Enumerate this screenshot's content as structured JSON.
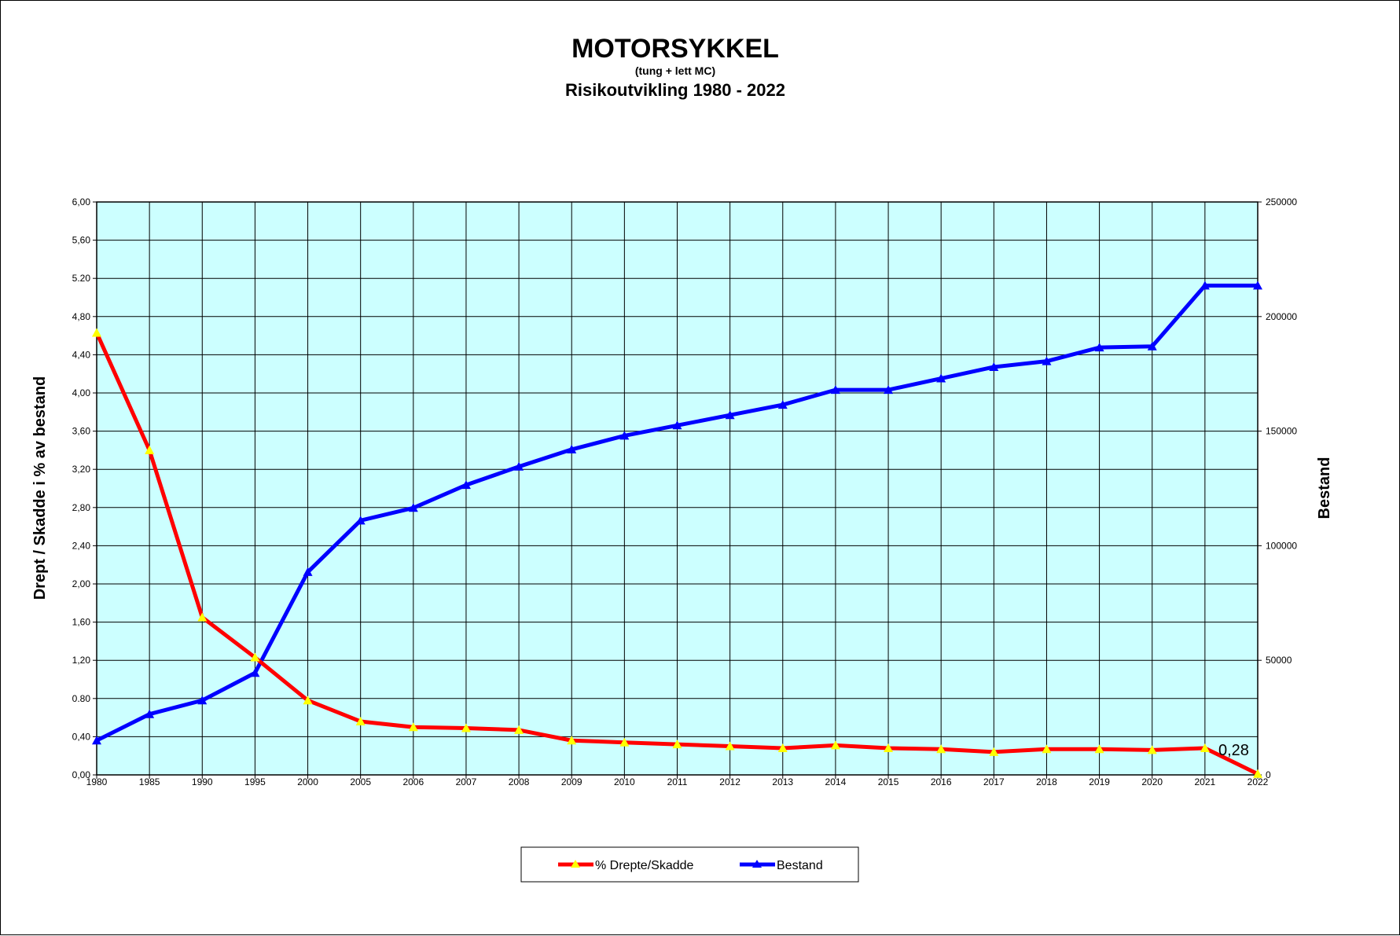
{
  "chart_data": {
    "type": "line",
    "title": "MOTORSYKKEL",
    "subtitle": "(tung + lett MC)",
    "subtitle2": "Risikoutvikling 1980 - 2022",
    "ylabel_left": "Drept / Skadde i % av bestand",
    "ylabel_right": "Bestand",
    "categories": [
      "1980",
      "1985",
      "1990",
      "1995",
      "2000",
      "2005",
      "2006",
      "2007",
      "2008",
      "2009",
      "2010",
      "2011",
      "2012",
      "2013",
      "2014",
      "2015",
      "2016",
      "2017",
      "2018",
      "2019",
      "2020",
      "2021",
      "2022"
    ],
    "left_axis": {
      "min": 0,
      "max": 6,
      "step": 0.4,
      "tick_labels": [
        "0,00",
        "0,40",
        "0.80",
        "1,20",
        "1,60",
        "2,00",
        "2,40",
        "2,80",
        "3,20",
        "3,60",
        "4,00",
        "4,40",
        "4,80",
        "5.20",
        "5,60",
        "6,00"
      ]
    },
    "right_axis": {
      "min": 0,
      "max": 250000,
      "step": 50000,
      "tick_labels": [
        "0",
        "50000",
        "100000",
        "150000",
        "200000",
        "250000"
      ]
    },
    "series": [
      {
        "name": "% Drepte/Skadde",
        "axis": "left",
        "color": "#ff0000",
        "marker_color": "#ffff00",
        "values": [
          4.63,
          3.4,
          1.65,
          1.23,
          0.78,
          0.56,
          0.5,
          0.49,
          0.47,
          0.36,
          0.34,
          0.32,
          0.3,
          0.28,
          0.31,
          0.28,
          0.27,
          0.24,
          0.27,
          0.27,
          0.26,
          0.28,
          0.01
        ]
      },
      {
        "name": "Bestand",
        "axis": "right",
        "color": "#0000ff",
        "marker_color": "#0000ff",
        "values": [
          15000,
          26500,
          32500,
          44500,
          88500,
          111000,
          116500,
          126500,
          134500,
          142000,
          148000,
          152500,
          157000,
          161500,
          168000,
          168000,
          173000,
          178000,
          180500,
          186500,
          187000,
          213500,
          213500
        ]
      }
    ],
    "annotation": {
      "text": "0,28",
      "series": 0,
      "category": "2021"
    },
    "plot_background": "#ccffff",
    "grid": true,
    "legend_position": "bottom"
  }
}
